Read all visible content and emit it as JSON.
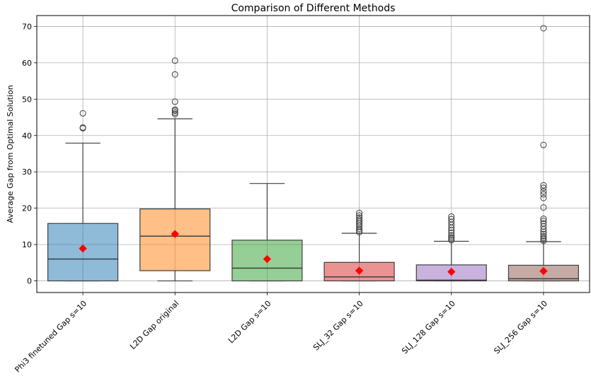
{
  "chart_data": {
    "type": "box",
    "title": "Comparison of Different Methods",
    "xlabel": "",
    "ylabel": "Average Gap from Optimal Solution",
    "ylim": [
      -3.2,
      73
    ],
    "yticks": [
      0,
      10,
      20,
      30,
      40,
      50,
      60,
      70
    ],
    "grid": true,
    "legend": "none",
    "mean_marker_color": "#ff0000",
    "categories": [
      "Phi3 finetuned Gap s=10",
      "L2D Gap original",
      "L2D Gap s=10",
      "SLJ_32 Gap s=10",
      "SLJ_128 Gap s=10",
      "SLJ_256 Gap s=10"
    ],
    "boxes": [
      {
        "whislo": 0,
        "q1": 0,
        "med": 6.0,
        "q3": 15.8,
        "whishi": 37.9,
        "mean": 8.9,
        "color": "#1f77b4",
        "fliers": [
          42.0,
          42.2,
          46.1
        ]
      },
      {
        "whislo": 0,
        "q1": 2.8,
        "med": 12.3,
        "q3": 19.8,
        "whishi": 44.6,
        "mean": 12.9,
        "color": "#ff7f0e",
        "fliers": [
          45.9,
          46.3,
          46.8,
          47.1,
          49.3,
          56.8,
          60.6
        ]
      },
      {
        "whislo": 0,
        "q1": 0,
        "med": 3.5,
        "q3": 11.2,
        "whishi": 26.8,
        "mean": 6.0,
        "color": "#2ca02c",
        "fliers": []
      },
      {
        "whislo": 0,
        "q1": 0,
        "med": 1.1,
        "q3": 5.1,
        "whishi": 13.1,
        "mean": 2.8,
        "color": "#d62728",
        "fliers": [
          13.4,
          13.8,
          14.3,
          14.9,
          15.4,
          15.9,
          16.4,
          16.9,
          17.4,
          18.0,
          18.7
        ]
      },
      {
        "whislo": 0,
        "q1": 0,
        "med": 0.2,
        "q3": 4.4,
        "whishi": 10.9,
        "mean": 2.5,
        "color": "#9467bd",
        "fliers": [
          11.2,
          11.6,
          12.0,
          12.5,
          13.2,
          13.9,
          14.6,
          15.4,
          16.2,
          17.0,
          17.7
        ]
      },
      {
        "whislo": 0,
        "q1": 0,
        "med": 0.6,
        "q3": 4.3,
        "whishi": 10.8,
        "mean": 2.7,
        "color": "#8c564b",
        "fliers": [
          11.0,
          11.4,
          11.8,
          12.3,
          12.9,
          13.5,
          14.2,
          15.0,
          15.8,
          16.5,
          17.1,
          20.2,
          22.8,
          23.8,
          24.6,
          25.6,
          26.3,
          37.4,
          69.5
        ]
      }
    ]
  }
}
